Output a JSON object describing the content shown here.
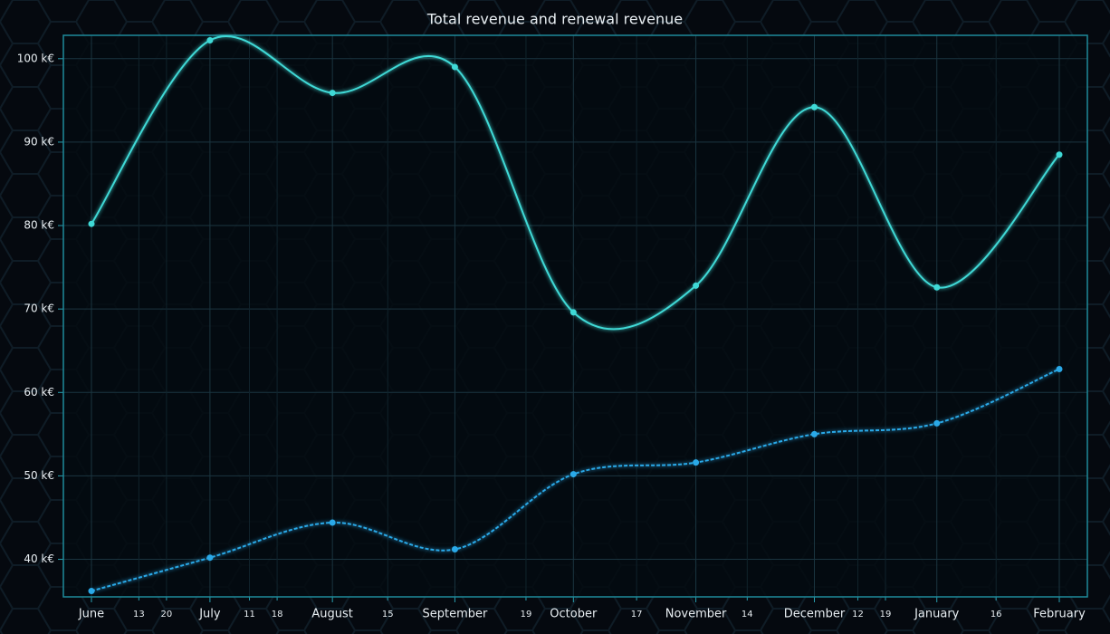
{
  "chart_data": {
    "type": "line",
    "title": "Total revenue and renewal revenue",
    "categories": [
      "June",
      "July",
      "August",
      "September",
      "October",
      "November",
      "December",
      "January",
      "February"
    ],
    "series": [
      {
        "color": "#3fd9d6",
        "dash": false,
        "values": [
          80.2,
          102.2,
          95.9,
          99.0,
          69.6,
          72.8,
          94.2,
          72.6,
          88.5
        ]
      },
      {
        "color": "#2aa9e8",
        "dash": true,
        "values": [
          36.2,
          40.2,
          44.4,
          41.2,
          50.2,
          51.6,
          55.0,
          56.3,
          62.8
        ]
      }
    ],
    "ylim": [
      35.5,
      102.8
    ],
    "yticks": [
      {
        "value": 40,
        "label": "40 k€"
      },
      {
        "value": 50,
        "label": "50 k€"
      },
      {
        "value": 60,
        "label": "60 k€"
      },
      {
        "value": 70,
        "label": "70 k€"
      },
      {
        "value": 80,
        "label": "80 k€"
      },
      {
        "value": 90,
        "label": "90 k€"
      },
      {
        "value": 100,
        "label": "100 k€"
      }
    ],
    "xticks": [
      {
        "value": "June 1",
        "label": "June"
      },
      {
        "value": "July 1",
        "label": "July"
      },
      {
        "value": "August 1",
        "label": "August"
      },
      {
        "value": "September 1",
        "label": "September"
      },
      {
        "value": "October 1",
        "label": "October"
      },
      {
        "value": "November 1",
        "label": "November"
      },
      {
        "value": "December 1",
        "label": "December"
      },
      {
        "value": "January 1",
        "label": "January"
      },
      {
        "value": "February 1",
        "label": "February"
      }
    ],
    "minor_xticks": [
      {
        "value": "June 13",
        "label": "13"
      },
      {
        "value": "June 20",
        "label": "20"
      },
      {
        "value": "July 11",
        "label": "11"
      },
      {
        "value": "July 18",
        "label": "18"
      },
      {
        "value": "August 15",
        "label": "15"
      },
      {
        "value": "September 19",
        "label": "19"
      },
      {
        "value": "October 17",
        "label": "17"
      },
      {
        "value": "November 14",
        "label": "14"
      },
      {
        "value": "December 12",
        "label": "12"
      },
      {
        "value": "December 19",
        "label": "19"
      },
      {
        "value": "January 16",
        "label": "16"
      }
    ],
    "grid": true
  }
}
